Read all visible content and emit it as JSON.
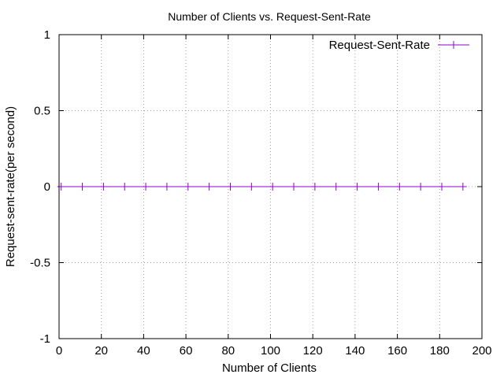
{
  "chart_data": {
    "type": "line",
    "title": "Number of Clients vs. Request-Sent-Rate",
    "xlabel": "Number of Clients",
    "ylabel": "Request-sent-rate(per second)",
    "xlim": [
      0,
      200
    ],
    "ylim": [
      -1,
      1
    ],
    "xticks": [
      0,
      20,
      40,
      60,
      80,
      100,
      120,
      140,
      160,
      180,
      200
    ],
    "yticks": [
      -1,
      -0.5,
      0,
      0.5,
      1
    ],
    "xtick_labels": [
      "0",
      "20",
      "40",
      "60",
      "80",
      "100",
      "120",
      "140",
      "160",
      "180",
      "200"
    ],
    "ytick_labels": [
      "-1",
      "-0.5",
      "0",
      "0.5",
      "1"
    ],
    "grid": true,
    "legend_position": "top-right",
    "series": [
      {
        "name": "Request-Sent-Rate",
        "color": "#9400d3",
        "marker": "plus",
        "x": [
          1,
          11,
          21,
          31,
          41,
          51,
          61,
          71,
          81,
          91,
          101,
          111,
          121,
          131,
          141,
          151,
          161,
          171,
          181,
          191
        ],
        "y": [
          0,
          0,
          0,
          0,
          0,
          0,
          0,
          0,
          0,
          0,
          0,
          0,
          0,
          0,
          0,
          0,
          0,
          0,
          0,
          0
        ]
      }
    ]
  }
}
